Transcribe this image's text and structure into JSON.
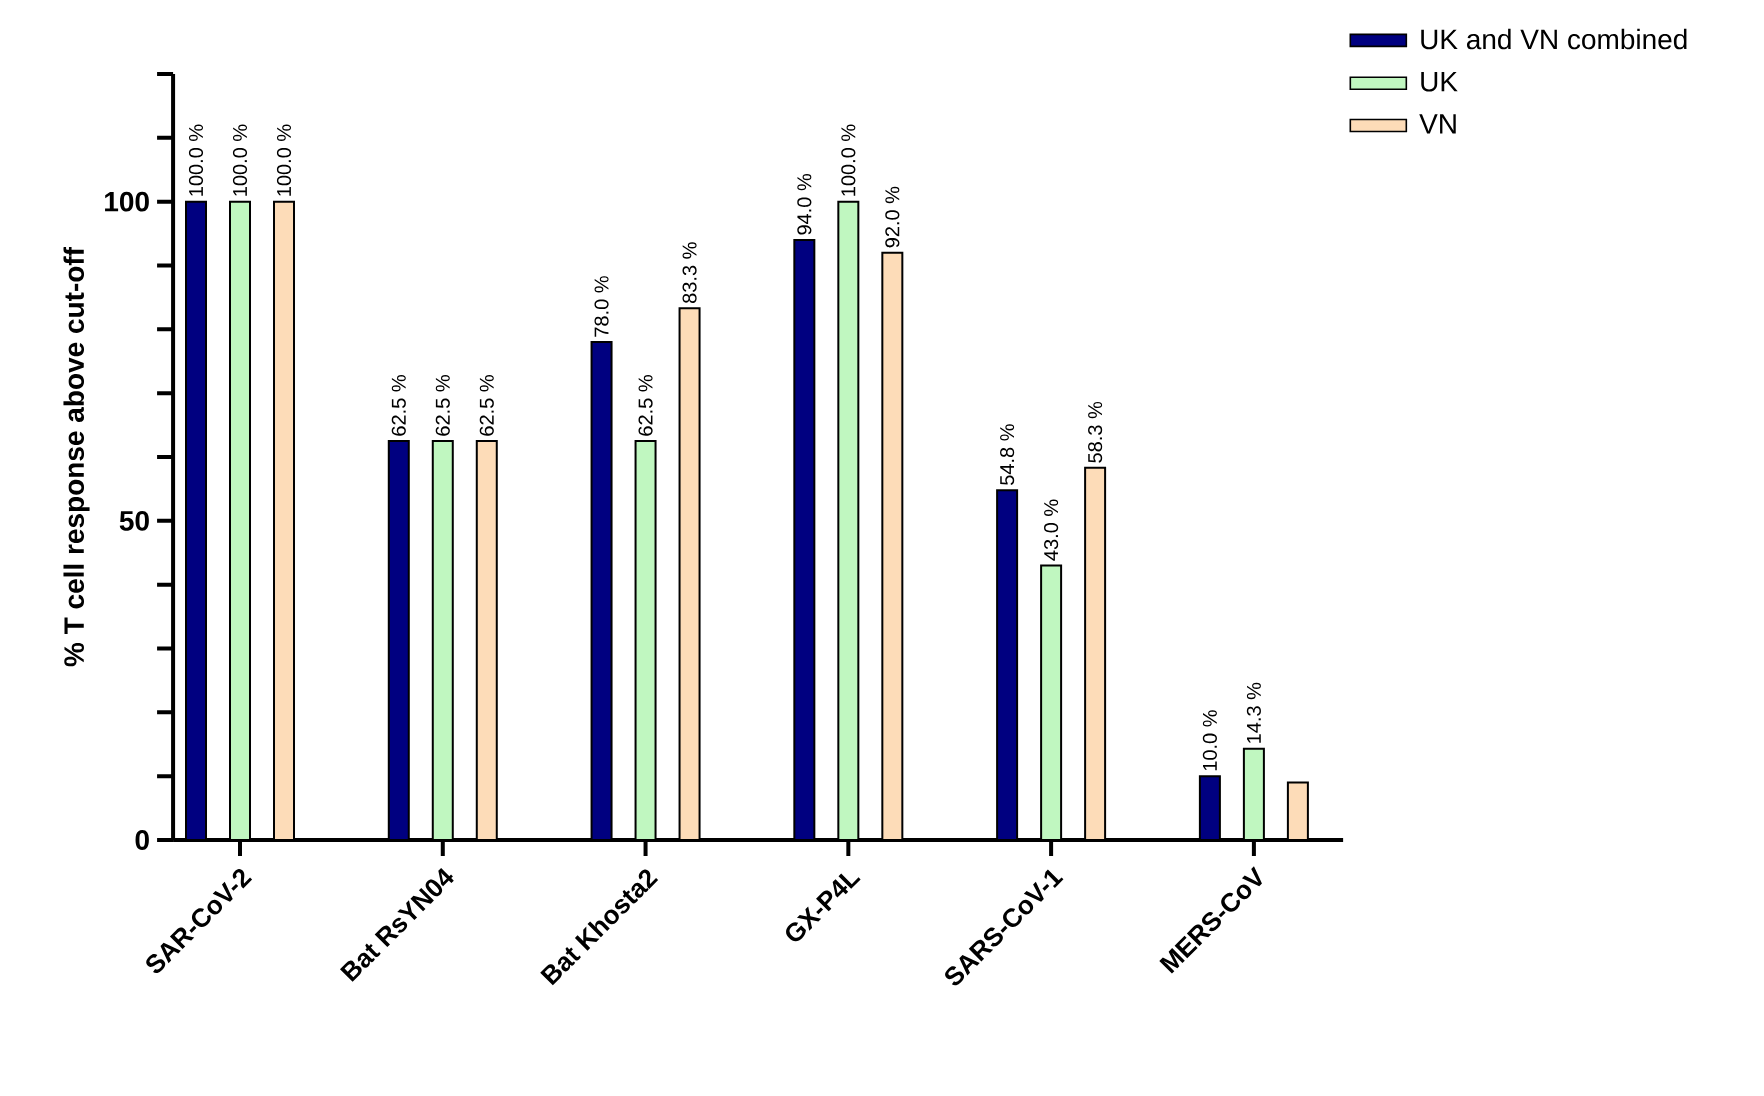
{
  "chart_data": {
    "type": "bar",
    "ylabel": "% T cell response above cut-off",
    "categories": [
      "SAR-CoV-2",
      "Bat RsYN04",
      "Bat Khosta2",
      "GX-P4L",
      "SARS-CoV-1",
      "MERS-CoV"
    ],
    "series": [
      {
        "name": "UK and VN combined",
        "color": "#000080",
        "values": [
          100.0,
          62.5,
          78.0,
          94.0,
          54.8,
          10.0
        ],
        "value_labels": [
          "100.0 %",
          "62.5 %",
          "78.0 %",
          "94.0 %",
          "54.8 %",
          "10.0 %"
        ]
      },
      {
        "name": "UK",
        "color": "#c0f7c0",
        "values": [
          100.0,
          62.5,
          62.5,
          100.0,
          43.0,
          14.3
        ],
        "value_labels": [
          "100.0 %",
          "62.5 %",
          "62.5 %",
          "100.0 %",
          "43.0 %",
          "14.3 %"
        ]
      },
      {
        "name": "VN",
        "color": "#fddcb8",
        "values": [
          100.0,
          62.5,
          83.3,
          92.0,
          58.3,
          9
        ],
        "value_labels": [
          "100.0 %",
          "62.5 %",
          "83.3 %",
          "92.0 %",
          "58.3 %",
          null
        ]
      }
    ],
    "ylim": [
      0,
      120
    ],
    "yticks": [
      0,
      {
        "value": 10,
        "label": null
      },
      {
        "value": 20,
        "label": null
      },
      {
        "value": 30,
        "label": null
      },
      {
        "value": 40,
        "label": null
      },
      50,
      {
        "value": 60,
        "label": null
      },
      {
        "value": 70,
        "label": null
      },
      {
        "value": 80,
        "label": null
      },
      {
        "value": 90,
        "label": null
      },
      100,
      {
        "value": 110,
        "label": null
      },
      {
        "value": 120,
        "label": null
      }
    ],
    "grid": false,
    "legend": "top right"
  }
}
